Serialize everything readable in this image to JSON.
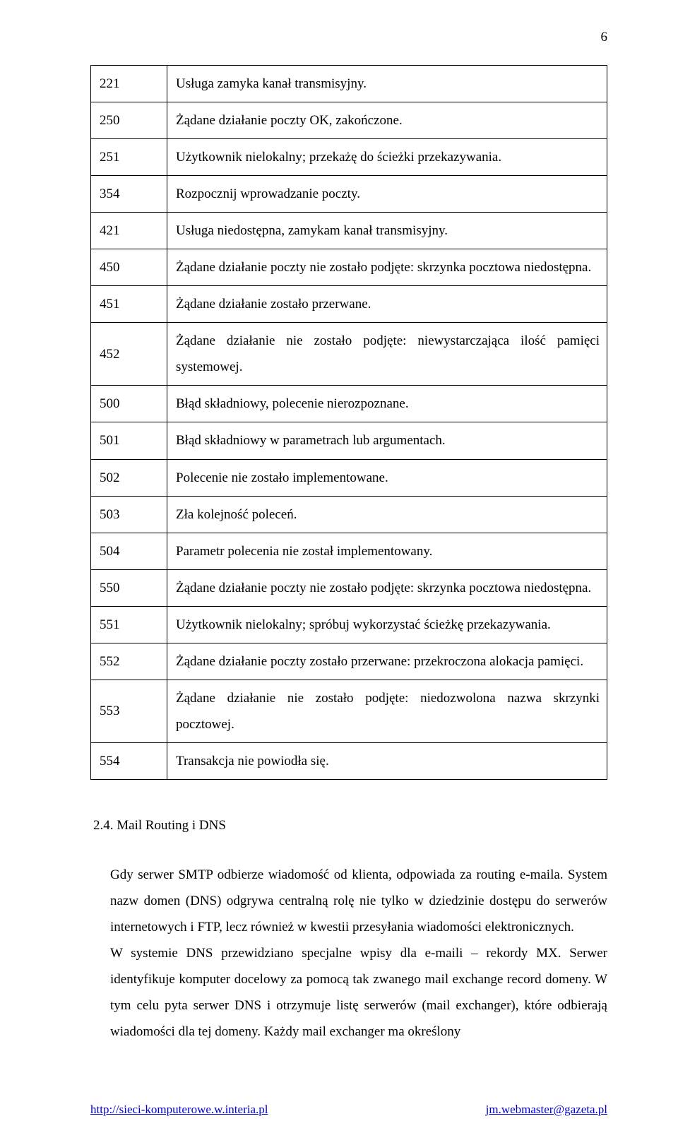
{
  "page_number": "6",
  "table": {
    "rows": [
      {
        "code": "221",
        "desc": "Usługa zamyka kanał transmisyjny."
      },
      {
        "code": "250",
        "desc": "Żądane działanie poczty OK, zakończone."
      },
      {
        "code": "251",
        "desc": "Użytkownik nielokalny; przekażę do ścieżki przekazywania."
      },
      {
        "code": "354",
        "desc": "Rozpocznij wprowadzanie poczty."
      },
      {
        "code": "421",
        "desc": "Usługa niedostępna, zamykam kanał transmisyjny."
      },
      {
        "code": "450",
        "desc": "Żądane działanie poczty nie zostało podjęte: skrzynka pocztowa niedostępna."
      },
      {
        "code": "451",
        "desc": "Żądane działanie zostało przerwane."
      },
      {
        "code": "452",
        "desc": "Żądane działanie nie zostało podjęte: niewystarczająca ilość pamięci systemowej."
      },
      {
        "code": "500",
        "desc": "Błąd składniowy, polecenie nierozpoznane."
      },
      {
        "code": "501",
        "desc": "Błąd składniowy w parametrach lub argumentach."
      },
      {
        "code": "502",
        "desc": "Polecenie nie zostało implementowane."
      },
      {
        "code": "503",
        "desc": "Zła kolejność poleceń."
      },
      {
        "code": "504",
        "desc": "Parametr polecenia nie został implementowany."
      },
      {
        "code": "550",
        "desc": "Żądane działanie poczty nie zostało podjęte: skrzynka pocztowa niedostępna."
      },
      {
        "code": "551",
        "desc": "Użytkownik nielokalny; spróbuj wykorzystać ścieżkę przekazywania."
      },
      {
        "code": "552",
        "desc": "Żądane działanie poczty zostało przerwane: przekroczona alokacja pamięci."
      },
      {
        "code": "553",
        "desc": "Żądane działanie nie zostało podjęte: niedozwolona nazwa skrzynki pocztowej."
      },
      {
        "code": "554",
        "desc": "Transakcja nie powiodła się."
      }
    ]
  },
  "section": {
    "heading": "2.4. Mail Routing i DNS",
    "paragraph1": "Gdy serwer SMTP odbierze wiadomość od klienta, odpowiada za routing e-maila. System nazw domen (DNS) odgrywa centralną rolę nie tylko w dziedzinie dostępu do serwerów internetowych i FTP, lecz również w kwestii przesyłania wiadomości elektronicznych.",
    "paragraph2": "W systemie DNS przewidziano specjalne wpisy dla e-maili – rekordy MX. Serwer identyfikuje komputer docelowy za pomocą tak zwanego mail exchange record domeny. W tym celu pyta serwer DNS i otrzymuje listę serwerów (mail exchanger), które odbierają wiadomości dla tej domeny. Każdy mail exchanger ma określony"
  },
  "footer": {
    "left": "http://sieci-komputerowe.w.interia.pl",
    "right": "jm.webmaster@gazeta.pl"
  }
}
